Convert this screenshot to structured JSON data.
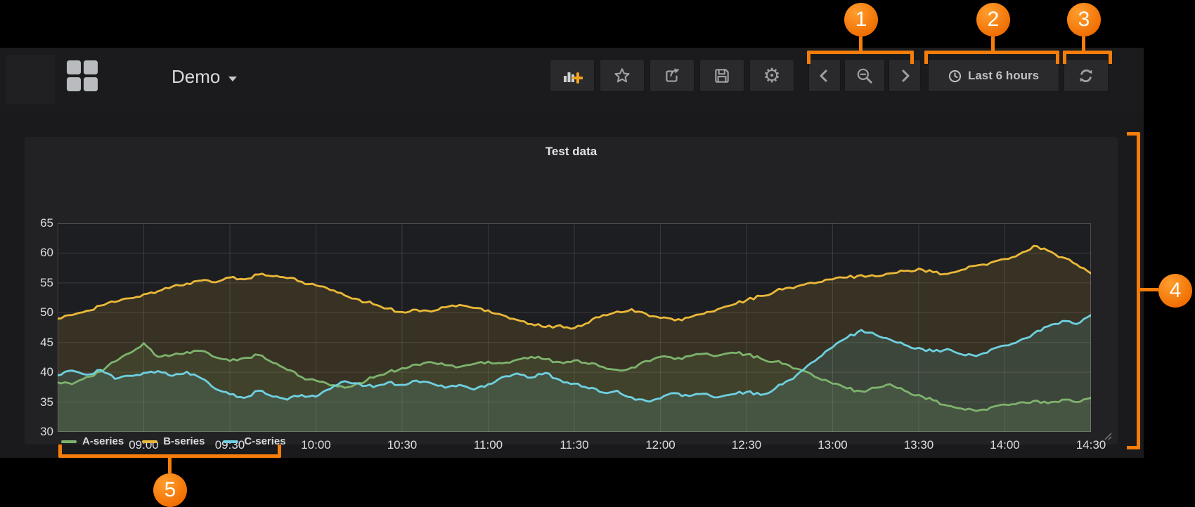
{
  "navbar": {
    "dashboard_title": "Demo",
    "time_picker_label": "Last 6 hours",
    "icons": [
      "menu-grid-icon",
      "add-panel-icon",
      "star-icon",
      "share-icon",
      "save-icon",
      "gear-icon",
      "chevron-left-icon",
      "zoom-out-icon",
      "chevron-right-icon",
      "clock-icon",
      "refresh-icon"
    ]
  },
  "panel": {
    "title": "Test data"
  },
  "annotations": {
    "items": [
      {
        "label": "1"
      },
      {
        "label": "2"
      },
      {
        "label": "3"
      },
      {
        "label": "4"
      },
      {
        "label": "5"
      }
    ]
  },
  "colors": {
    "accent_orange": "#f57d0a",
    "series_green": "#7eb26d",
    "series_yellow": "#eab839",
    "series_cyan": "#6ed0e0",
    "panel_bg": "#222225",
    "plot_bg": "#1d1e21",
    "app_bg": "#1a1a1c"
  },
  "chart_data": {
    "type": "line",
    "title": "Test data",
    "xlabel": "",
    "ylabel": "",
    "x_range": [
      8.5,
      14.5
    ],
    "y_range": [
      30,
      65
    ],
    "grid": true,
    "legend_position": "bottom-left",
    "x_ticks": [
      {
        "v": 9.0,
        "label": "09:00"
      },
      {
        "v": 9.5,
        "label": "09:30"
      },
      {
        "v": 10.0,
        "label": "10:00"
      },
      {
        "v": 10.5,
        "label": "10:30"
      },
      {
        "v": 11.0,
        "label": "11:00"
      },
      {
        "v": 11.5,
        "label": "11:30"
      },
      {
        "v": 12.0,
        "label": "12:00"
      },
      {
        "v": 12.5,
        "label": "12:30"
      },
      {
        "v": 13.0,
        "label": "13:00"
      },
      {
        "v": 13.5,
        "label": "13:30"
      },
      {
        "v": 14.0,
        "label": "14:00"
      },
      {
        "v": 14.5,
        "label": "14:30"
      }
    ],
    "y_ticks": [
      30,
      35,
      40,
      45,
      50,
      55,
      60,
      65
    ],
    "series": [
      {
        "name": "A-series",
        "color": "#7eb26d",
        "fill_opacity": 0.13,
        "points": [
          [
            8.5,
            38.3
          ],
          [
            8.583,
            38.0
          ],
          [
            8.667,
            39.2
          ],
          [
            8.75,
            40.1
          ],
          [
            8.833,
            41.8
          ],
          [
            8.917,
            43.2
          ],
          [
            9.0,
            44.9
          ],
          [
            9.083,
            42.6
          ],
          [
            9.167,
            42.9
          ],
          [
            9.25,
            43.4
          ],
          [
            9.333,
            43.6
          ],
          [
            9.417,
            42.5
          ],
          [
            9.5,
            41.9
          ],
          [
            9.583,
            42.4
          ],
          [
            9.667,
            42.9
          ],
          [
            9.75,
            41.6
          ],
          [
            9.833,
            40.4
          ],
          [
            9.917,
            39.2
          ],
          [
            10.0,
            38.6
          ],
          [
            10.083,
            37.8
          ],
          [
            10.167,
            37.4
          ],
          [
            10.25,
            38.2
          ],
          [
            10.333,
            39.1
          ],
          [
            10.417,
            40.0
          ],
          [
            10.5,
            40.7
          ],
          [
            10.583,
            41.3
          ],
          [
            10.667,
            41.7
          ],
          [
            10.75,
            41.2
          ],
          [
            10.833,
            40.9
          ],
          [
            10.917,
            41.4
          ],
          [
            11.0,
            41.8
          ],
          [
            11.083,
            41.5
          ],
          [
            11.167,
            42.1
          ],
          [
            11.25,
            42.6
          ],
          [
            11.333,
            42.2
          ],
          [
            11.417,
            41.7
          ],
          [
            11.5,
            42.0
          ],
          [
            11.583,
            41.4
          ],
          [
            11.667,
            40.9
          ],
          [
            11.75,
            40.4
          ],
          [
            11.833,
            40.8
          ],
          [
            11.917,
            41.9
          ],
          [
            12.0,
            42.6
          ],
          [
            12.083,
            42.2
          ],
          [
            12.167,
            42.7
          ],
          [
            12.25,
            43.1
          ],
          [
            12.333,
            42.8
          ],
          [
            12.417,
            43.3
          ],
          [
            12.5,
            43.0
          ],
          [
            12.583,
            42.3
          ],
          [
            12.667,
            41.8
          ],
          [
            12.75,
            41.1
          ],
          [
            12.833,
            40.2
          ],
          [
            12.917,
            39.0
          ],
          [
            13.0,
            38.1
          ],
          [
            13.083,
            37.3
          ],
          [
            13.167,
            36.8
          ],
          [
            13.25,
            37.4
          ],
          [
            13.333,
            38.0
          ],
          [
            13.417,
            36.9
          ],
          [
            13.5,
            36.2
          ],
          [
            13.583,
            35.3
          ],
          [
            13.667,
            34.4
          ],
          [
            13.75,
            33.9
          ],
          [
            13.833,
            33.5
          ],
          [
            13.917,
            34.1
          ],
          [
            14.0,
            34.6
          ],
          [
            14.083,
            34.9
          ],
          [
            14.167,
            35.2
          ],
          [
            14.25,
            34.8
          ],
          [
            14.333,
            35.4
          ],
          [
            14.417,
            35.0
          ],
          [
            14.5,
            35.7
          ]
        ]
      },
      {
        "name": "B-series",
        "color": "#eab839",
        "fill_opacity": 0.13,
        "points": [
          [
            8.5,
            49.0
          ],
          [
            8.583,
            49.6
          ],
          [
            8.667,
            50.3
          ],
          [
            8.75,
            51.2
          ],
          [
            8.833,
            51.8
          ],
          [
            8.917,
            52.4
          ],
          [
            9.0,
            53.1
          ],
          [
            9.083,
            53.6
          ],
          [
            9.167,
            54.4
          ],
          [
            9.25,
            54.9
          ],
          [
            9.333,
            55.4
          ],
          [
            9.417,
            55.1
          ],
          [
            9.5,
            55.9
          ],
          [
            9.583,
            55.6
          ],
          [
            9.667,
            56.4
          ],
          [
            9.75,
            56.1
          ],
          [
            9.833,
            55.8
          ],
          [
            9.917,
            55.2
          ],
          [
            10.0,
            54.6
          ],
          [
            10.083,
            53.8
          ],
          [
            10.167,
            52.9
          ],
          [
            10.25,
            52.2
          ],
          [
            10.333,
            51.4
          ],
          [
            10.417,
            50.7
          ],
          [
            10.5,
            50.1
          ],
          [
            10.583,
            50.5
          ],
          [
            10.667,
            50.2
          ],
          [
            10.75,
            50.9
          ],
          [
            10.833,
            51.3
          ],
          [
            10.917,
            50.8
          ],
          [
            11.0,
            50.4
          ],
          [
            11.083,
            49.6
          ],
          [
            11.167,
            48.8
          ],
          [
            11.25,
            48.1
          ],
          [
            11.333,
            47.6
          ],
          [
            11.417,
            47.9
          ],
          [
            11.5,
            47.4
          ],
          [
            11.583,
            48.3
          ],
          [
            11.667,
            49.6
          ],
          [
            11.75,
            50.2
          ],
          [
            11.833,
            50.6
          ],
          [
            11.917,
            49.8
          ],
          [
            12.0,
            49.1
          ],
          [
            12.083,
            48.7
          ],
          [
            12.167,
            49.2
          ],
          [
            12.25,
            49.8
          ],
          [
            12.333,
            50.6
          ],
          [
            12.417,
            51.3
          ],
          [
            12.5,
            52.1
          ],
          [
            12.583,
            52.8
          ],
          [
            12.667,
            53.6
          ],
          [
            12.75,
            54.2
          ],
          [
            12.833,
            54.7
          ],
          [
            12.917,
            55.1
          ],
          [
            13.0,
            55.6
          ],
          [
            13.083,
            55.9
          ],
          [
            13.167,
            56.3
          ],
          [
            13.25,
            56.1
          ],
          [
            13.333,
            56.6
          ],
          [
            13.417,
            57.0
          ],
          [
            13.5,
            57.4
          ],
          [
            13.583,
            56.8
          ],
          [
            13.667,
            56.5
          ],
          [
            13.75,
            57.2
          ],
          [
            13.833,
            57.9
          ],
          [
            13.917,
            58.4
          ],
          [
            14.0,
            59.0
          ],
          [
            14.083,
            59.8
          ],
          [
            14.167,
            61.2
          ],
          [
            14.25,
            60.4
          ],
          [
            14.333,
            59.3
          ],
          [
            14.417,
            58.1
          ],
          [
            14.5,
            56.6
          ]
        ]
      },
      {
        "name": "C-series",
        "color": "#6ed0e0",
        "fill_opacity": 0.13,
        "points": [
          [
            8.5,
            39.5
          ],
          [
            8.583,
            40.3
          ],
          [
            8.667,
            39.6
          ],
          [
            8.75,
            40.4
          ],
          [
            8.833,
            38.9
          ],
          [
            8.917,
            39.4
          ],
          [
            9.0,
            39.9
          ],
          [
            9.083,
            40.2
          ],
          [
            9.167,
            39.4
          ],
          [
            9.25,
            40.1
          ],
          [
            9.333,
            39.0
          ],
          [
            9.417,
            37.2
          ],
          [
            9.5,
            36.3
          ],
          [
            9.583,
            35.7
          ],
          [
            9.667,
            36.9
          ],
          [
            9.75,
            35.9
          ],
          [
            9.833,
            35.4
          ],
          [
            9.917,
            36.2
          ],
          [
            10.0,
            35.9
          ],
          [
            10.083,
            37.2
          ],
          [
            10.167,
            38.5
          ],
          [
            10.25,
            38.1
          ],
          [
            10.333,
            37.5
          ],
          [
            10.417,
            38.3
          ],
          [
            10.5,
            37.9
          ],
          [
            10.583,
            38.6
          ],
          [
            10.667,
            38.2
          ],
          [
            10.75,
            37.4
          ],
          [
            10.833,
            37.9
          ],
          [
            10.917,
            37.1
          ],
          [
            11.0,
            38.0
          ],
          [
            11.083,
            39.2
          ],
          [
            11.167,
            39.8
          ],
          [
            11.25,
            39.1
          ],
          [
            11.333,
            39.9
          ],
          [
            11.417,
            38.7
          ],
          [
            11.5,
            38.1
          ],
          [
            11.583,
            37.3
          ],
          [
            11.667,
            36.6
          ],
          [
            11.75,
            36.9
          ],
          [
            11.833,
            35.8
          ],
          [
            11.917,
            35.2
          ],
          [
            12.0,
            35.6
          ],
          [
            12.083,
            36.5
          ],
          [
            12.167,
            36.0
          ],
          [
            12.25,
            36.4
          ],
          [
            12.333,
            35.8
          ],
          [
            12.417,
            36.3
          ],
          [
            12.5,
            36.7
          ],
          [
            12.583,
            36.2
          ],
          [
            12.667,
            37.3
          ],
          [
            12.75,
            38.7
          ],
          [
            12.833,
            40.5
          ],
          [
            12.917,
            42.4
          ],
          [
            13.0,
            44.2
          ],
          [
            13.083,
            45.8
          ],
          [
            13.167,
            47.1
          ],
          [
            13.25,
            46.3
          ],
          [
            13.333,
            45.5
          ],
          [
            13.417,
            44.6
          ],
          [
            13.5,
            44.1
          ],
          [
            13.583,
            43.5
          ],
          [
            13.667,
            43.9
          ],
          [
            13.75,
            43.0
          ],
          [
            13.833,
            42.7
          ],
          [
            13.917,
            43.8
          ],
          [
            14.0,
            44.5
          ],
          [
            14.083,
            45.3
          ],
          [
            14.167,
            46.5
          ],
          [
            14.25,
            47.7
          ],
          [
            14.333,
            48.6
          ],
          [
            14.417,
            48.1
          ],
          [
            14.5,
            49.6
          ]
        ]
      }
    ]
  }
}
